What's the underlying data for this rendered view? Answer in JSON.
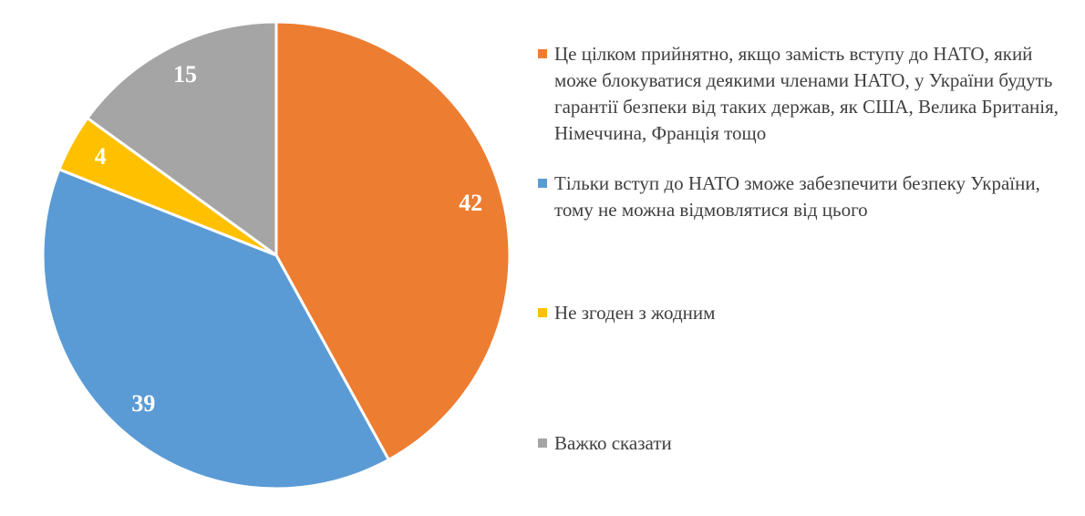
{
  "chart_data": {
    "type": "pie",
    "categories": [
      "Це цілком прийнятно, якщо замість вступу до НАТО, який може блокуватися деякими членами НАТО, у України будуть гарантії безпеки від таких держав, як США, Велика Британія, Німеччина, Франція тощо",
      "Тільки вступ до НАТО зможе забезпечити безпеку України, тому не можна відмовлятися від цього",
      "Не згоден з жодним",
      "Важко сказати"
    ],
    "values": [
      42,
      39,
      4,
      15
    ],
    "colors": [
      "#ed7d31",
      "#5b9bd5",
      "#ffc000",
      "#a5a5a5"
    ],
    "legend": "right"
  }
}
